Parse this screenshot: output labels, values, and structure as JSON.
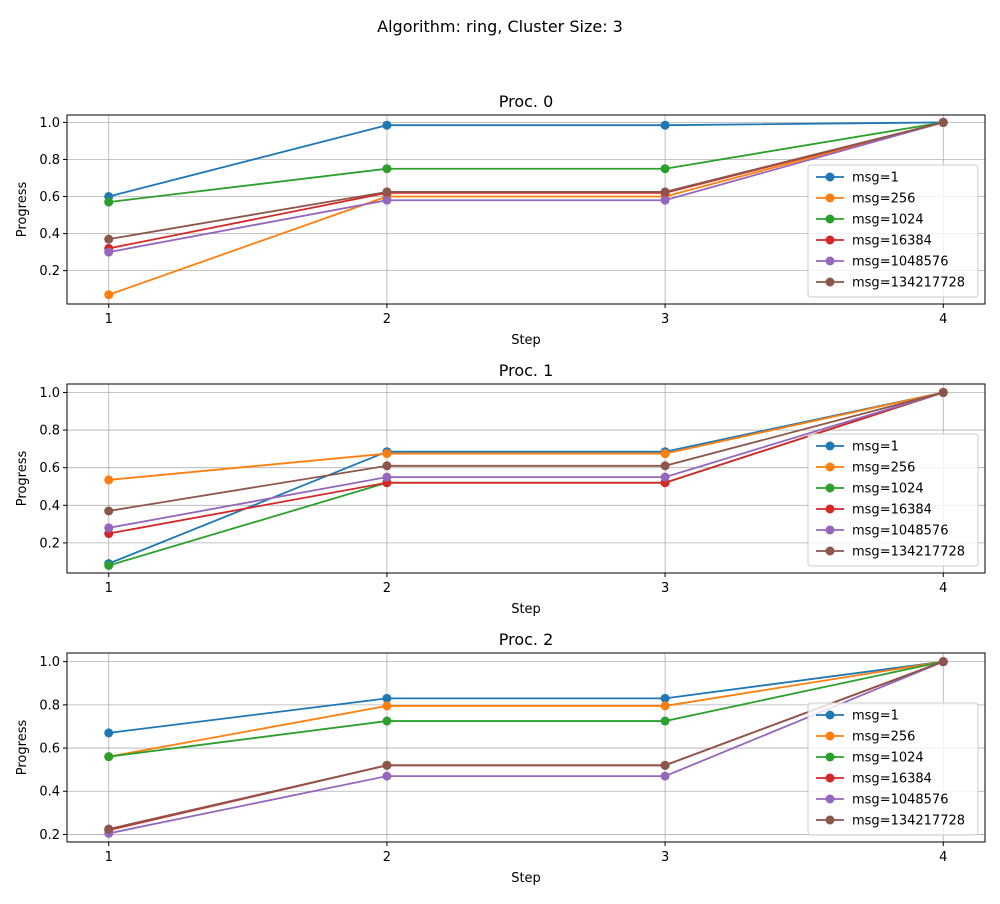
{
  "figure": {
    "suptitle": "Algorithm: ring, Cluster Size: 3"
  },
  "series_colors": [
    "#1f77b4",
    "#ff7f0e",
    "#2ca02c",
    "#d62728",
    "#9467bd",
    "#8c564b"
  ],
  "chart_data": [
    {
      "type": "line",
      "title": "Proc. 0",
      "xlabel": "Step",
      "ylabel": "Progress",
      "x": [
        1,
        2,
        3,
        4
      ],
      "xticks": [
        "1",
        "2",
        "3",
        "4"
      ],
      "yticks": [
        "0.2",
        "0.4",
        "0.6",
        "0.8",
        "1.0"
      ],
      "ylim": [
        0.02,
        1.04
      ],
      "grid": true,
      "legend_position": "lower-right",
      "series": [
        {
          "name": "msg=1",
          "values": [
            0.6,
            0.985,
            0.985,
            1.0
          ]
        },
        {
          "name": "msg=256",
          "values": [
            0.07,
            0.6,
            0.6,
            1.0
          ]
        },
        {
          "name": "msg=1024",
          "values": [
            0.57,
            0.75,
            0.75,
            1.0
          ]
        },
        {
          "name": "msg=16384",
          "values": [
            0.32,
            0.62,
            0.62,
            1.0
          ]
        },
        {
          "name": "msg=1048576",
          "values": [
            0.3,
            0.58,
            0.58,
            1.0
          ]
        },
        {
          "name": "msg=134217728",
          "values": [
            0.37,
            0.625,
            0.625,
            1.0
          ]
        }
      ]
    },
    {
      "type": "line",
      "title": "Proc. 1",
      "xlabel": "Step",
      "ylabel": "Progress",
      "x": [
        1,
        2,
        3,
        4
      ],
      "xticks": [
        "1",
        "2",
        "3",
        "4"
      ],
      "yticks": [
        "0.2",
        "0.4",
        "0.6",
        "0.8",
        "1.0"
      ],
      "ylim": [
        0.04,
        1.045
      ],
      "grid": true,
      "legend_position": "lower-right",
      "series": [
        {
          "name": "msg=1",
          "values": [
            0.09,
            0.685,
            0.685,
            1.0
          ]
        },
        {
          "name": "msg=256",
          "values": [
            0.535,
            0.675,
            0.675,
            1.0
          ]
        },
        {
          "name": "msg=1024",
          "values": [
            0.08,
            0.52,
            0.52,
            1.0
          ]
        },
        {
          "name": "msg=16384",
          "values": [
            0.25,
            0.52,
            0.52,
            1.0
          ]
        },
        {
          "name": "msg=1048576",
          "values": [
            0.28,
            0.55,
            0.55,
            1.0
          ]
        },
        {
          "name": "msg=134217728",
          "values": [
            0.37,
            0.61,
            0.61,
            1.0
          ]
        }
      ]
    },
    {
      "type": "line",
      "title": "Proc. 2",
      "xlabel": "Step",
      "ylabel": "Progress",
      "x": [
        1,
        2,
        3,
        4
      ],
      "xticks": [
        "1",
        "2",
        "3",
        "4"
      ],
      "yticks": [
        "0.2",
        "0.4",
        "0.6",
        "0.8",
        "1.0"
      ],
      "ylim": [
        0.165,
        1.04
      ],
      "grid": true,
      "legend_position": "lower-right",
      "series": [
        {
          "name": "msg=1",
          "values": [
            0.67,
            0.83,
            0.83,
            1.0
          ]
        },
        {
          "name": "msg=256",
          "values": [
            0.56,
            0.795,
            0.795,
            1.0
          ]
        },
        {
          "name": "msg=1024",
          "values": [
            0.56,
            0.725,
            0.725,
            1.0
          ]
        },
        {
          "name": "msg=16384",
          "values": [
            0.22,
            0.52,
            0.52,
            1.0
          ]
        },
        {
          "name": "msg=1048576",
          "values": [
            0.205,
            0.47,
            0.47,
            1.0
          ]
        },
        {
          "name": "msg=134217728",
          "values": [
            0.225,
            0.52,
            0.52,
            1.0
          ]
        }
      ]
    }
  ]
}
